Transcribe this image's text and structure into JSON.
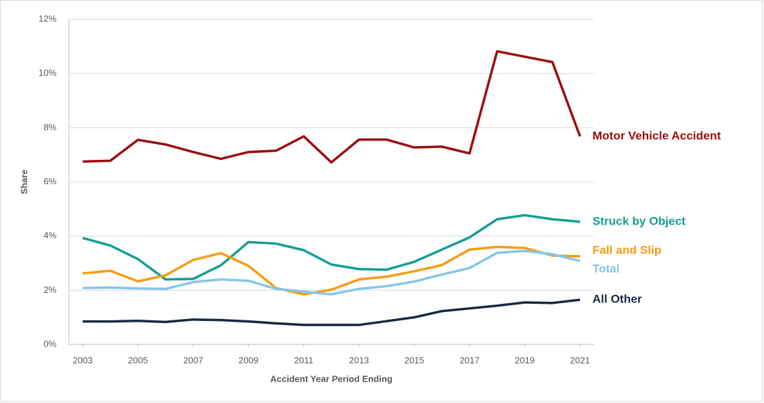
{
  "chart_data": {
    "type": "line",
    "x_label": "Accident Year Period Ending",
    "y_label": "Share",
    "x": [
      2003,
      2004,
      2005,
      2006,
      2007,
      2008,
      2009,
      2010,
      2011,
      2012,
      2013,
      2014,
      2015,
      2016,
      2017,
      2018,
      2019,
      2020,
      2021
    ],
    "series": [
      {
        "name": "Motor Vehicle Accident",
        "color": "#9b0d0d",
        "values": [
          6.75,
          6.78,
          7.55,
          7.38,
          7.1,
          6.85,
          7.1,
          7.15,
          7.68,
          6.72,
          7.56,
          7.56,
          7.27,
          7.3,
          7.05,
          10.82,
          10.62,
          10.42,
          7.68
        ]
      },
      {
        "name": "Struck by Object",
        "color": "#169c94",
        "values": [
          3.93,
          3.65,
          3.15,
          2.4,
          2.42,
          2.92,
          3.78,
          3.72,
          3.48,
          2.95,
          2.78,
          2.76,
          3.05,
          3.5,
          3.95,
          4.62,
          4.77,
          4.62,
          4.53
        ]
      },
      {
        "name": "Fall and Slip",
        "color": "#f59d12",
        "values": [
          2.62,
          2.72,
          2.33,
          2.55,
          3.12,
          3.37,
          2.9,
          2.08,
          1.85,
          2.02,
          2.4,
          2.5,
          2.7,
          2.93,
          3.5,
          3.6,
          3.56,
          3.28,
          3.25
        ]
      },
      {
        "name": "Total",
        "color": "#84c6ea",
        "values": [
          2.08,
          2.1,
          2.07,
          2.05,
          2.3,
          2.4,
          2.35,
          2.05,
          1.95,
          1.85,
          2.05,
          2.15,
          2.32,
          2.58,
          2.82,
          3.38,
          3.45,
          3.33,
          3.08
        ]
      },
      {
        "name": "All Other",
        "color": "#152a45",
        "values": [
          0.85,
          0.85,
          0.87,
          0.83,
          0.92,
          0.9,
          0.85,
          0.78,
          0.72,
          0.72,
          0.72,
          0.86,
          1.0,
          1.23,
          1.33,
          1.43,
          1.55,
          1.53,
          1.65
        ]
      }
    ],
    "xlim": [
      2002.5,
      2021.5
    ],
    "xticks": [
      2003,
      2005,
      2007,
      2009,
      2011,
      2013,
      2015,
      2017,
      2019,
      2021
    ],
    "ylim": [
      0,
      12
    ],
    "yticks": [
      {
        "value": 0,
        "label": "0%"
      },
      {
        "value": 2,
        "label": "2%"
      },
      {
        "value": 4,
        "label": "4%"
      },
      {
        "value": 6,
        "label": "6%"
      },
      {
        "value": 8,
        "label": "8%"
      },
      {
        "value": 10,
        "label": "10%"
      },
      {
        "value": 12,
        "label": "12%"
      }
    ],
    "grid": true
  }
}
